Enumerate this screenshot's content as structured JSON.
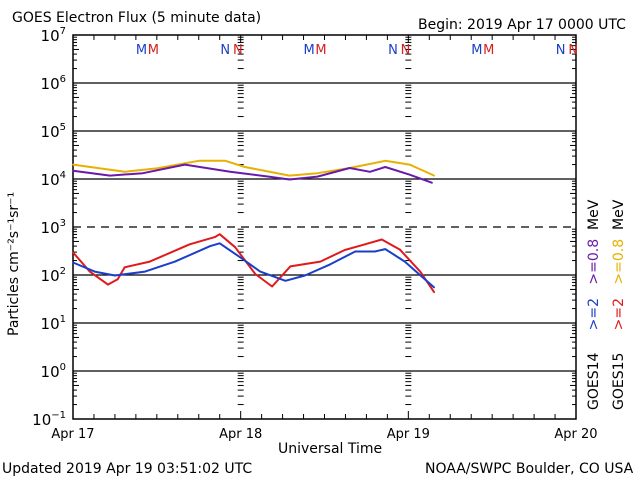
{
  "header": {
    "title": "GOES Electron Flux (5 minute data)",
    "begin": "Begin: 2019 Apr 17 0000 UTC"
  },
  "footer": {
    "updated": "Updated 2019 Apr 19 03:51:02 UTC",
    "credit": "NOAA/SWPC Boulder, CO USA"
  },
  "chart_data": {
    "type": "line",
    "title": "GOES Electron Flux (5 minute data)",
    "xlabel": "Universal Time",
    "ylabel": "Particles cm⁻²s⁻¹sr⁻¹",
    "yscale": "log",
    "ylim_log10": [
      -1,
      7
    ],
    "xlim_hours": [
      0,
      72
    ],
    "x_unit": "hours since 2019 Apr 17 0000 UTC",
    "grid": "horizontal solid at each decade, dashed at 10^3",
    "x_ticks": [
      {
        "hour": 0,
        "label": "Apr 17"
      },
      {
        "hour": 24,
        "label": "Apr 18"
      },
      {
        "hour": 48,
        "label": "Apr 19"
      },
      {
        "hour": 72,
        "label": "Apr 20"
      }
    ],
    "y_ticks": [
      {
        "exp": 7,
        "base": "10",
        "sup": "7"
      },
      {
        "exp": 6,
        "base": "10",
        "sup": "6"
      },
      {
        "exp": 5,
        "base": "10",
        "sup": "5"
      },
      {
        "exp": 4,
        "base": "10",
        "sup": "4"
      },
      {
        "exp": 3,
        "base": "10",
        "sup": "3"
      },
      {
        "exp": 2,
        "base": "10",
        "sup": "2"
      },
      {
        "exp": 1,
        "base": "10",
        "sup": "1"
      },
      {
        "exp": 0,
        "base": "10",
        "sup": "0"
      },
      {
        "exp": -1,
        "base": "10",
        "sup": "−1"
      }
    ],
    "markers": [
      {
        "label": "M",
        "hour": 9.8,
        "color": "#1a3fc8"
      },
      {
        "label": "M",
        "hour": 11.5,
        "color": "#d42020"
      },
      {
        "label": "N",
        "hour": 21.8,
        "color": "#1a3fc8"
      },
      {
        "label": "N",
        "hour": 23.6,
        "color": "#d42020"
      },
      {
        "label": "M",
        "hour": 33.8,
        "color": "#1a3fc8"
      },
      {
        "label": "M",
        "hour": 35.5,
        "color": "#d42020"
      },
      {
        "label": "N",
        "hour": 45.8,
        "color": "#1a3fc8"
      },
      {
        "label": "N",
        "hour": 47.6,
        "color": "#d42020"
      },
      {
        "label": "M",
        "hour": 57.8,
        "color": "#1a3fc8"
      },
      {
        "label": "M",
        "hour": 59.5,
        "color": "#d42020"
      },
      {
        "label": "N",
        "hour": 69.8,
        "color": "#1a3fc8"
      },
      {
        "label": "N",
        "hour": 71.6,
        "color": "#d42020"
      }
    ],
    "legend_position": "right (vertical)",
    "legend": [
      {
        "sat": "GOES14",
        "energy": ">=2",
        "energy2": ">=0.8",
        "unit": "MeV",
        "color_hi": "#1a3fc8",
        "color_lo": "#6a1aa8"
      },
      {
        "sat": "GOES15",
        "energy": ">=2",
        "energy2": ">=0.8",
        "unit": "MeV",
        "color_hi": "#e01a1a",
        "color_lo": "#e8b000"
      }
    ],
    "series": [
      {
        "name": "GOES15 >=0.8 MeV",
        "color": "#e8b000",
        "hours": [
          0,
          7.4,
          12,
          18,
          21.8,
          24.6,
          31,
          35,
          39.6,
          44.7,
          48.2,
          51.7
        ],
        "log10": [
          4.3,
          4.15,
          4.22,
          4.38,
          4.38,
          4.25,
          4.07,
          4.12,
          4.23,
          4.38,
          4.3,
          4.07
        ]
      },
      {
        "name": "GOES14 >=0.8 MeV",
        "color": "#6a1aa8",
        "hours": [
          0,
          5.3,
          10,
          16,
          22.5,
          28,
          31,
          35,
          39.6,
          42.5,
          44.7,
          48.2,
          51.4
        ],
        "log10": [
          4.17,
          4.07,
          4.12,
          4.3,
          4.15,
          4.05,
          3.99,
          4.05,
          4.23,
          4.15,
          4.25,
          4.09,
          3.92
        ]
      },
      {
        "name": "GOES15 >=2 MeV",
        "color": "#e01a1a",
        "hours": [
          0,
          2.4,
          5.0,
          6.4,
          7.4,
          11,
          16.7,
          20.3,
          21.0,
          23.2,
          26.1,
          28.5,
          31.1,
          35.4,
          38.9,
          41.8,
          44.2,
          46.8,
          49.7,
          51.7
        ],
        "log10": [
          2.47,
          2.07,
          1.8,
          1.91,
          2.16,
          2.28,
          2.64,
          2.79,
          2.85,
          2.58,
          2.02,
          1.76,
          2.18,
          2.28,
          2.52,
          2.64,
          2.74,
          2.53,
          2.07,
          1.64
        ]
      },
      {
        "name": "GOES14 >=2 MeV",
        "color": "#1a3fc8",
        "hours": [
          0,
          3.1,
          6.0,
          10.3,
          14.6,
          19.6,
          21.0,
          23.9,
          26.8,
          30.4,
          33.2,
          36.8,
          40.4,
          43.2,
          44.7,
          47.5,
          51.7
        ],
        "log10": [
          2.26,
          2.07,
          1.99,
          2.07,
          2.28,
          2.6,
          2.66,
          2.37,
          2.07,
          1.88,
          1.99,
          2.22,
          2.49,
          2.49,
          2.54,
          2.28,
          1.74
        ]
      }
    ]
  }
}
